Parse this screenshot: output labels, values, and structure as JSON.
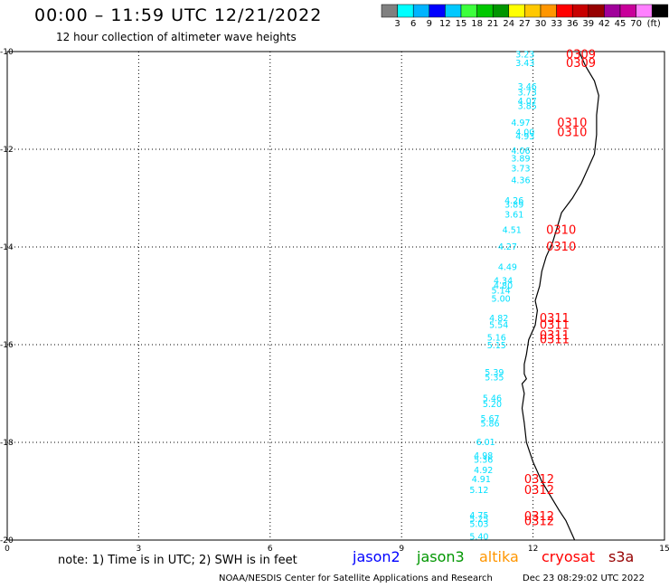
{
  "header": {
    "title": "00:00 – 11:59 UTC 12/21/2022",
    "subtitle": "12 hour collection of altimeter wave heights"
  },
  "color_scale": {
    "swatches": [
      "#808080",
      "#00ffff",
      "#00b4ff",
      "#0000ff",
      "#00c8ff",
      "#3cff3c",
      "#00c800",
      "#009600",
      "#ffff00",
      "#ffc800",
      "#ff9600",
      "#ff0000",
      "#c80000",
      "#960000",
      "#a0009a",
      "#c8009a",
      "#ff80ff",
      "#000000"
    ],
    "labels": [
      "3",
      "6",
      "9",
      "12",
      "15",
      "18",
      "21",
      "24",
      "27",
      "30",
      "33",
      "36",
      "39",
      "42",
      "45",
      "70",
      "(ft)"
    ]
  },
  "axes": {
    "y_labels": [
      "-10",
      "-12",
      "-14",
      "-16",
      "-18",
      "-20"
    ],
    "x_labels": [
      "0",
      "3",
      "6",
      "9",
      "12",
      "15"
    ]
  },
  "swh_color": "#00e0ff",
  "time_color": "#ff0000",
  "coast_color": "#000000",
  "swh_readings": [
    {
      "v": "3.23",
      "lon": 11.6,
      "lat": -10.05
    },
    {
      "v": "3.43",
      "lon": 11.6,
      "lat": -10.22
    },
    {
      "v": "3.46",
      "lon": 11.65,
      "lat": -10.7
    },
    {
      "v": "3.73",
      "lon": 11.65,
      "lat": -10.82
    },
    {
      "v": "4.07",
      "lon": 11.65,
      "lat": -11.0
    },
    {
      "v": "3.85",
      "lon": 11.65,
      "lat": -11.1
    },
    {
      "v": "4.97",
      "lon": 11.5,
      "lat": -11.44
    },
    {
      "v": "4.00",
      "lon": 11.6,
      "lat": -11.64
    },
    {
      "v": "4.93",
      "lon": 11.6,
      "lat": -11.72
    },
    {
      "v": "4.06",
      "lon": 11.5,
      "lat": -12.02
    },
    {
      "v": "3.89",
      "lon": 11.5,
      "lat": -12.18
    },
    {
      "v": "3.73",
      "lon": 11.5,
      "lat": -12.38
    },
    {
      "v": "4.36",
      "lon": 11.5,
      "lat": -12.62
    },
    {
      "v": "4.26",
      "lon": 11.35,
      "lat": -13.04
    },
    {
      "v": "3.89",
      "lon": 11.35,
      "lat": -13.12
    },
    {
      "v": "3.61",
      "lon": 11.35,
      "lat": -13.32
    },
    {
      "v": "4.51",
      "lon": 11.3,
      "lat": -13.64
    },
    {
      "v": "4.27",
      "lon": 11.2,
      "lat": -13.98
    },
    {
      "v": "4.49",
      "lon": 11.2,
      "lat": -14.4
    },
    {
      "v": "4.34",
      "lon": 11.1,
      "lat": -14.68
    },
    {
      "v": "4.80",
      "lon": 11.1,
      "lat": -14.78
    },
    {
      "v": "5.14",
      "lon": 11.05,
      "lat": -14.88
    },
    {
      "v": "5.00",
      "lon": 11.05,
      "lat": -15.05
    },
    {
      "v": "4.82",
      "lon": 11.0,
      "lat": -15.44
    },
    {
      "v": "5.54",
      "lon": 11.0,
      "lat": -15.58
    },
    {
      "v": "5.16",
      "lon": 10.95,
      "lat": -15.84
    },
    {
      "v": "5.15",
      "lon": 10.95,
      "lat": -16.0
    },
    {
      "v": "5.39",
      "lon": 10.9,
      "lat": -16.56
    },
    {
      "v": "5.35",
      "lon": 10.9,
      "lat": -16.66
    },
    {
      "v": "5.46",
      "lon": 10.85,
      "lat": -17.08
    },
    {
      "v": "5.20",
      "lon": 10.85,
      "lat": -17.2
    },
    {
      "v": "5.67",
      "lon": 10.8,
      "lat": -17.5
    },
    {
      "v": "5.86",
      "lon": 10.8,
      "lat": -17.6
    },
    {
      "v": "6.01",
      "lon": 10.7,
      "lat": -17.98
    },
    {
      "v": "4.98",
      "lon": 10.65,
      "lat": -18.26
    },
    {
      "v": "5.36",
      "lon": 10.65,
      "lat": -18.34
    },
    {
      "v": "4.92",
      "lon": 10.65,
      "lat": -18.56
    },
    {
      "v": "4.91",
      "lon": 10.6,
      "lat": -18.74
    },
    {
      "v": "5.12",
      "lon": 10.55,
      "lat": -18.96
    },
    {
      "v": "4.75",
      "lon": 10.55,
      "lat": -19.48
    },
    {
      "v": "5.25",
      "lon": 10.55,
      "lat": -19.56
    },
    {
      "v": "5.03",
      "lon": 10.55,
      "lat": -19.66
    },
    {
      "v": "5.40",
      "lon": 10.55,
      "lat": -19.92
    }
  ],
  "time_labels": [
    {
      "t": "0309",
      "lon": 12.75,
      "lat": -10.05
    },
    {
      "t": "0309",
      "lon": 12.75,
      "lat": -10.22
    },
    {
      "t": "0310",
      "lon": 12.55,
      "lat": -11.44
    },
    {
      "t": "0310",
      "lon": 12.55,
      "lat": -11.64
    },
    {
      "t": "0310",
      "lon": 12.3,
      "lat": -13.64
    },
    {
      "t": "0310",
      "lon": 12.3,
      "lat": -13.98
    },
    {
      "t": "0311",
      "lon": 12.15,
      "lat": -15.44
    },
    {
      "t": "0311",
      "lon": 12.15,
      "lat": -15.58
    },
    {
      "t": "0311",
      "lon": 12.15,
      "lat": -15.8
    },
    {
      "t": "0311",
      "lon": 12.15,
      "lat": -15.88
    },
    {
      "t": "0312",
      "lon": 11.8,
      "lat": -18.74
    },
    {
      "t": "0312",
      "lon": 11.8,
      "lat": -18.96
    },
    {
      "t": "0312",
      "lon": 11.8,
      "lat": -19.5
    },
    {
      "t": "0312",
      "lon": 11.8,
      "lat": -19.6
    }
  ],
  "coastline": [
    [
      13.05,
      -10.0
    ],
    [
      13.2,
      -10.3
    ],
    [
      13.4,
      -10.6
    ],
    [
      13.5,
      -10.9
    ],
    [
      13.45,
      -11.3
    ],
    [
      13.45,
      -11.7
    ],
    [
      13.4,
      -12.1
    ],
    [
      13.25,
      -12.4
    ],
    [
      13.1,
      -12.7
    ],
    [
      12.9,
      -13.0
    ],
    [
      12.65,
      -13.3
    ],
    [
      12.55,
      -13.6
    ],
    [
      12.45,
      -13.9
    ],
    [
      12.3,
      -14.2
    ],
    [
      12.2,
      -14.5
    ],
    [
      12.15,
      -14.8
    ],
    [
      12.05,
      -15.1
    ],
    [
      12.1,
      -15.3
    ],
    [
      12.05,
      -15.6
    ],
    [
      11.9,
      -15.9
    ],
    [
      11.85,
      -16.2
    ],
    [
      11.8,
      -16.4
    ],
    [
      11.8,
      -16.6
    ],
    [
      11.85,
      -16.7
    ],
    [
      11.75,
      -16.8
    ],
    [
      11.8,
      -17.0
    ],
    [
      11.75,
      -17.3
    ],
    [
      11.8,
      -17.6
    ],
    [
      11.85,
      -18.0
    ],
    [
      12.0,
      -18.4
    ],
    [
      12.2,
      -18.8
    ],
    [
      12.4,
      -19.1
    ],
    [
      12.6,
      -19.4
    ],
    [
      12.75,
      -19.6
    ],
    [
      12.95,
      -20.0
    ]
  ],
  "satellites": [
    {
      "name": "jason2",
      "color": "#0000ff"
    },
    {
      "name": "jason3",
      "color": "#009600"
    },
    {
      "name": "altika",
      "color": "#ff9600"
    },
    {
      "name": "cryosat",
      "color": "#ff0000"
    },
    {
      "name": "s3a",
      "color": "#960000"
    }
  ],
  "footer": {
    "note": "note: 1) Time is in UTC; 2) SWH is in feet",
    "credit": "NOAA/NESDIS Center for Satellite Applications and Research",
    "stamp": "Dec 23 08:29:02 UTC 2022"
  }
}
